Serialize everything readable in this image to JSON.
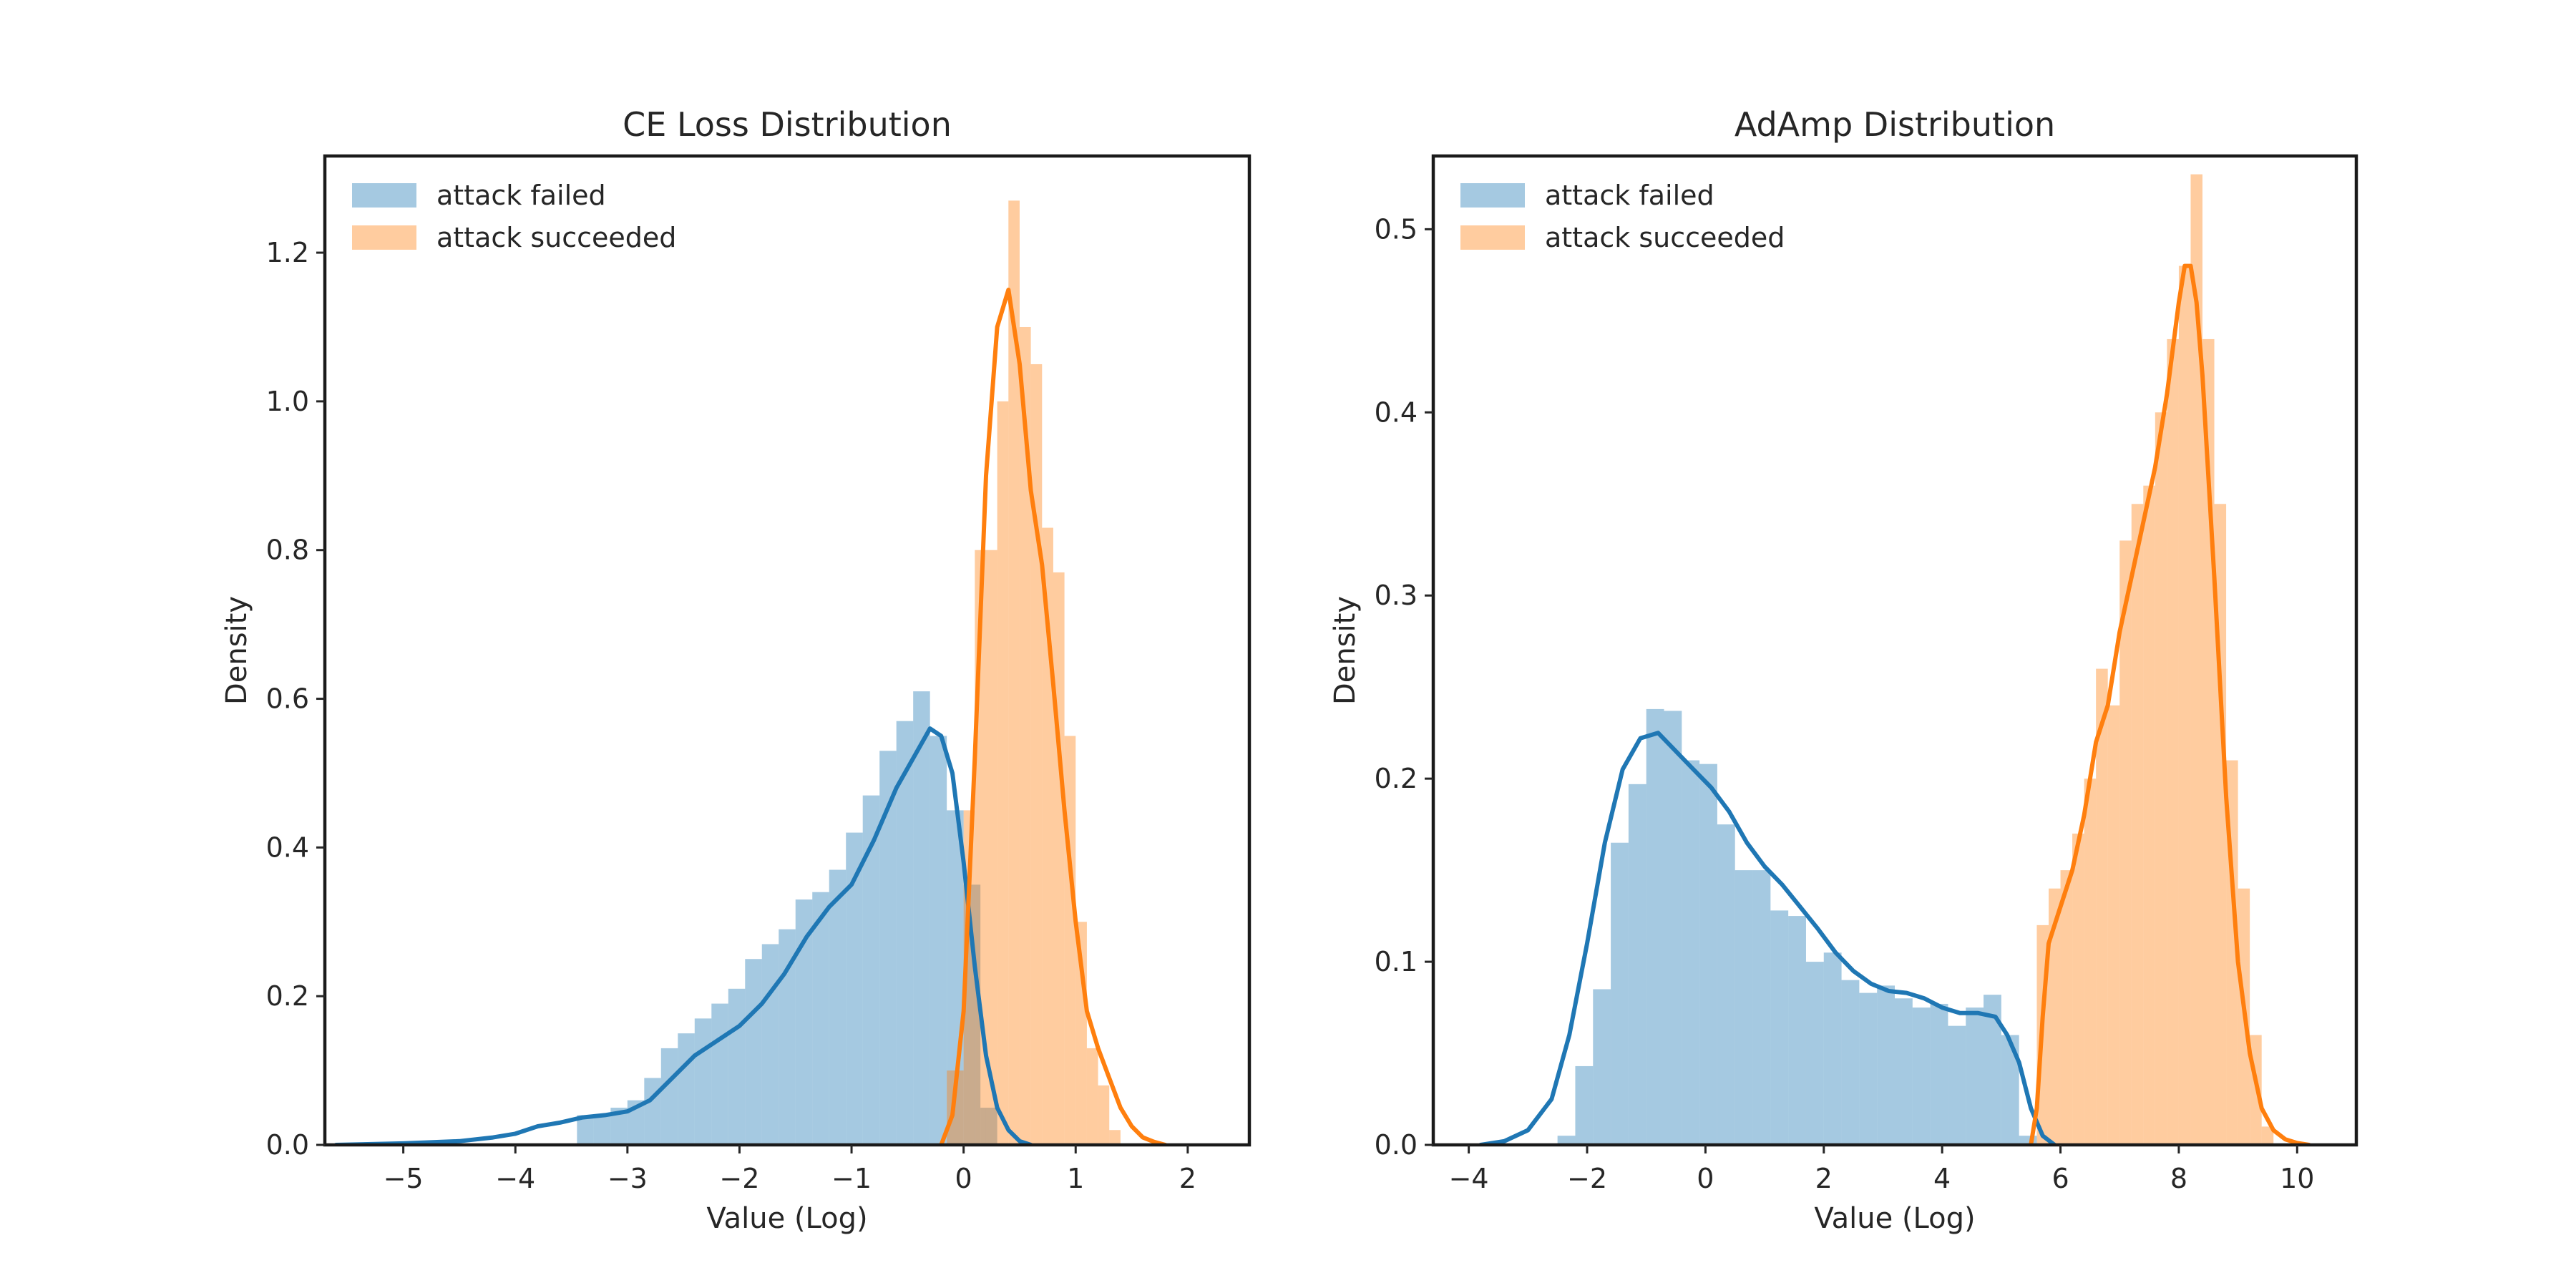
{
  "figure": {
    "background": "#ffffff",
    "colors": {
      "failed": "#1f77b4",
      "succeeded": "#ff7f0e",
      "hist_alpha": 0.4
    }
  },
  "chart_data": [
    {
      "type": "histogram+kde",
      "title": "CE Loss Distribution",
      "xlabel": "Value (Log)",
      "ylabel": "Density",
      "xlim": [
        -5.7,
        2.55
      ],
      "ylim": [
        0,
        1.33
      ],
      "xticks": [
        -5,
        -4,
        -3,
        -2,
        -1,
        0,
        1,
        2
      ],
      "xtick_labels": [
        "−5",
        "−4",
        "−3",
        "−2",
        "−1",
        "0",
        "1",
        "2"
      ],
      "yticks": [
        0,
        0.2,
        0.4,
        0.6,
        0.8,
        1.0,
        1.2
      ],
      "ytick_labels": [
        "0.0",
        "0.2",
        "0.4",
        "0.6",
        "0.8",
        "1.0",
        "1.2"
      ],
      "grid": false,
      "legend_position": "top-left",
      "series": [
        {
          "name": "attack failed",
          "color": "#1f77b4",
          "hist": {
            "edges": [
              -3.45,
              -3.3,
              -3.15,
              -3.0,
              -2.85,
              -2.7,
              -2.55,
              -2.4,
              -2.25,
              -2.1,
              -1.95,
              -1.8,
              -1.65,
              -1.5,
              -1.35,
              -1.2,
              -1.05,
              -0.9,
              -0.75,
              -0.6,
              -0.45,
              -0.3,
              -0.15,
              0.0,
              0.15,
              0.3
            ],
            "values": [
              0.04,
              0.04,
              0.05,
              0.06,
              0.09,
              0.13,
              0.15,
              0.17,
              0.19,
              0.21,
              0.25,
              0.27,
              0.29,
              0.33,
              0.34,
              0.37,
              0.42,
              0.47,
              0.53,
              0.57,
              0.61,
              0.55,
              0.45,
              0.35,
              0.05
            ]
          },
          "kde": {
            "x": [
              -5.6,
              -5.0,
              -4.5,
              -4.2,
              -4.0,
              -3.8,
              -3.6,
              -3.4,
              -3.2,
              -3.0,
              -2.8,
              -2.6,
              -2.4,
              -2.2,
              -2.0,
              -1.8,
              -1.6,
              -1.4,
              -1.2,
              -1.0,
              -0.8,
              -0.6,
              -0.45,
              -0.3,
              -0.2,
              -0.1,
              0.0,
              0.1,
              0.2,
              0.3,
              0.4,
              0.5,
              0.6
            ],
            "y": [
              0.0,
              0.002,
              0.005,
              0.01,
              0.015,
              0.025,
              0.03,
              0.037,
              0.04,
              0.045,
              0.06,
              0.09,
              0.12,
              0.14,
              0.16,
              0.19,
              0.23,
              0.28,
              0.32,
              0.35,
              0.41,
              0.48,
              0.52,
              0.56,
              0.55,
              0.5,
              0.38,
              0.24,
              0.12,
              0.05,
              0.02,
              0.005,
              0.0
            ]
          }
        },
        {
          "name": "attack succeeded",
          "color": "#ff7f0e",
          "hist": {
            "edges": [
              -0.15,
              0.0,
              0.1,
              0.2,
              0.3,
              0.4,
              0.5,
              0.6,
              0.7,
              0.8,
              0.9,
              1.0,
              1.1,
              1.2,
              1.3,
              1.4
            ],
            "values": [
              0.1,
              0.45,
              0.8,
              0.8,
              1.0,
              1.27,
              1.1,
              1.05,
              0.83,
              0.77,
              0.55,
              0.3,
              0.13,
              0.08,
              0.02
            ]
          },
          "kde": {
            "x": [
              -0.2,
              -0.1,
              0.0,
              0.1,
              0.2,
              0.3,
              0.4,
              0.5,
              0.6,
              0.7,
              0.8,
              0.9,
              1.0,
              1.1,
              1.2,
              1.3,
              1.4,
              1.5,
              1.6,
              1.7,
              1.8
            ],
            "y": [
              0.0,
              0.04,
              0.18,
              0.52,
              0.9,
              1.1,
              1.15,
              1.05,
              0.88,
              0.78,
              0.62,
              0.45,
              0.3,
              0.18,
              0.13,
              0.09,
              0.05,
              0.025,
              0.01,
              0.004,
              0.0
            ]
          }
        }
      ]
    },
    {
      "type": "histogram+kde",
      "title": "AdAmp Distribution",
      "xlabel": "Value (Log)",
      "ylabel": "Density",
      "xlim": [
        -4.6,
        11.0
      ],
      "ylim": [
        0,
        0.54
      ],
      "xticks": [
        -4,
        -2,
        0,
        2,
        4,
        6,
        8,
        10
      ],
      "xtick_labels": [
        "−4",
        "−2",
        "0",
        "2",
        "4",
        "6",
        "8",
        "10"
      ],
      "yticks": [
        0,
        0.1,
        0.2,
        0.3,
        0.4,
        0.5
      ],
      "ytick_labels": [
        "0.0",
        "0.1",
        "0.2",
        "0.3",
        "0.4",
        "0.5"
      ],
      "grid": false,
      "legend_position": "top-left",
      "series": [
        {
          "name": "attack failed",
          "color": "#1f77b4",
          "hist": {
            "edges": [
              -2.5,
              -2.2,
              -1.9,
              -1.6,
              -1.3,
              -1.0,
              -0.7,
              -0.4,
              -0.1,
              0.2,
              0.5,
              0.8,
              1.1,
              1.4,
              1.7,
              2.0,
              2.3,
              2.6,
              2.9,
              3.2,
              3.5,
              3.8,
              4.1,
              4.4,
              4.7,
              5.0,
              5.3,
              5.6
            ],
            "values": [
              0.005,
              0.043,
              0.085,
              0.165,
              0.197,
              0.238,
              0.237,
              0.21,
              0.208,
              0.175,
              0.15,
              0.15,
              0.128,
              0.125,
              0.1,
              0.105,
              0.09,
              0.083,
              0.087,
              0.08,
              0.075,
              0.077,
              0.065,
              0.075,
              0.082,
              0.06,
              0.005
            ]
          },
          "kde": {
            "x": [
              -3.8,
              -3.4,
              -3.0,
              -2.6,
              -2.3,
              -2.0,
              -1.7,
              -1.4,
              -1.1,
              -0.8,
              -0.5,
              -0.2,
              0.1,
              0.4,
              0.7,
              1.0,
              1.3,
              1.6,
              1.9,
              2.2,
              2.5,
              2.8,
              3.1,
              3.4,
              3.7,
              4.0,
              4.3,
              4.6,
              4.9,
              5.1,
              5.3,
              5.5,
              5.7,
              5.9
            ],
            "y": [
              0.0,
              0.002,
              0.008,
              0.025,
              0.06,
              0.11,
              0.165,
              0.205,
              0.222,
              0.225,
              0.215,
              0.205,
              0.195,
              0.182,
              0.165,
              0.152,
              0.142,
              0.13,
              0.118,
              0.105,
              0.095,
              0.088,
              0.084,
              0.083,
              0.08,
              0.075,
              0.072,
              0.072,
              0.07,
              0.06,
              0.045,
              0.02,
              0.005,
              0.0
            ]
          }
        },
        {
          "name": "attack succeeded",
          "color": "#ff7f0e",
          "hist": {
            "edges": [
              5.6,
              5.8,
              6.0,
              6.2,
              6.4,
              6.6,
              6.8,
              7.0,
              7.2,
              7.4,
              7.6,
              7.8,
              8.0,
              8.2,
              8.4,
              8.6,
              8.8,
              9.0,
              9.2,
              9.4,
              9.6
            ],
            "values": [
              0.12,
              0.14,
              0.15,
              0.17,
              0.2,
              0.26,
              0.24,
              0.33,
              0.35,
              0.36,
              0.4,
              0.44,
              0.48,
              0.53,
              0.44,
              0.35,
              0.21,
              0.14,
              0.06,
              0.01
            ]
          },
          "kde": {
            "x": [
              5.5,
              5.6,
              5.7,
              5.8,
              6.0,
              6.2,
              6.4,
              6.6,
              6.8,
              7.0,
              7.2,
              7.4,
              7.6,
              7.8,
              8.0,
              8.1,
              8.2,
              8.3,
              8.4,
              8.6,
              8.8,
              9.0,
              9.2,
              9.4,
              9.6,
              9.8,
              10.0,
              10.2
            ],
            "y": [
              0.0,
              0.02,
              0.07,
              0.11,
              0.13,
              0.15,
              0.18,
              0.22,
              0.24,
              0.28,
              0.31,
              0.34,
              0.37,
              0.41,
              0.46,
              0.48,
              0.48,
              0.46,
              0.42,
              0.31,
              0.19,
              0.1,
              0.05,
              0.02,
              0.008,
              0.003,
              0.001,
              0.0
            ]
          }
        }
      ]
    }
  ]
}
